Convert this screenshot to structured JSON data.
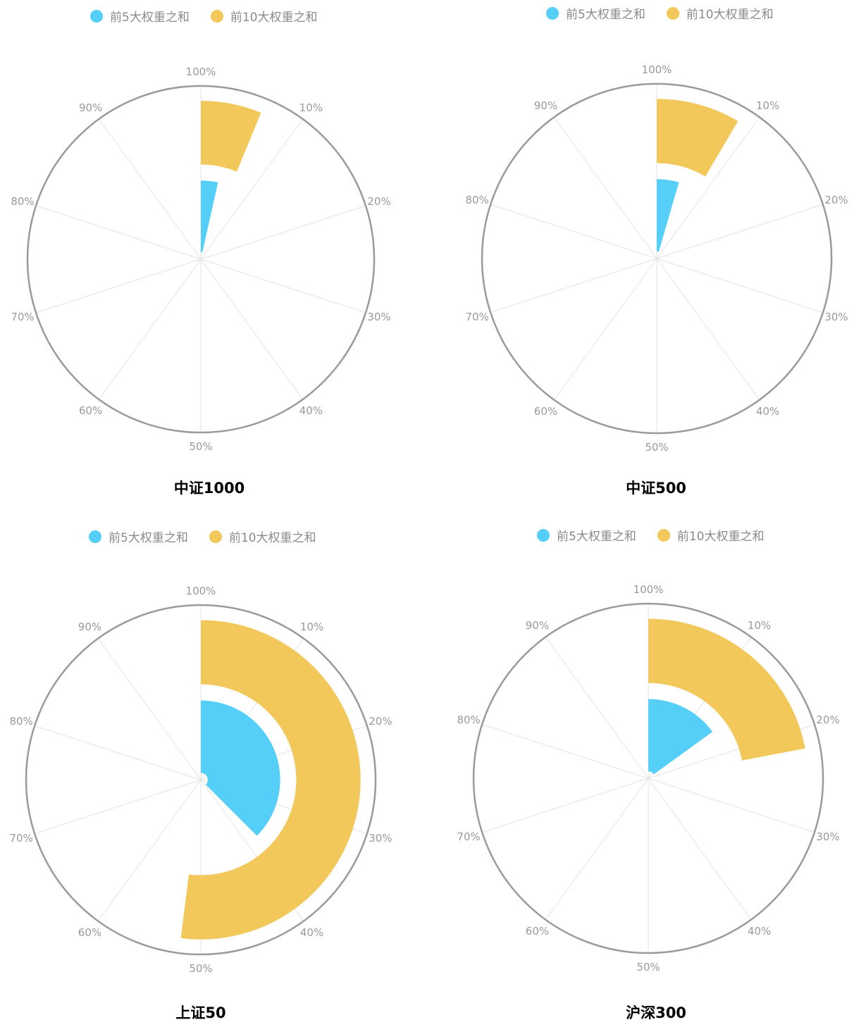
{
  "colors": {
    "top5": "#55cff8",
    "top10": "#f2c85b",
    "outer_ring": "#9a9a9a",
    "spoke": "#e3e3e3",
    "tick_label": "#999999"
  },
  "chart_data": [
    {
      "type": "polar-bar",
      "title": "中证1000",
      "angle_axis": {
        "min": 0,
        "max": 100,
        "unit": "%",
        "tick_labels": [
          "100%",
          "10%",
          "20%",
          "30%",
          "40%",
          "50%",
          "60%",
          "70%",
          "80%",
          "90%"
        ]
      },
      "categories": [
        "前5大权重之和",
        "前10大权重之和"
      ],
      "series": [
        {
          "name": "前5大权重之和",
          "color": "#55cff8",
          "values": [
            3.5,
            null
          ]
        },
        {
          "name": "前10大权重之和",
          "color": "#f2c85b",
          "values": [
            null,
            6.2
          ]
        }
      ],
      "legend": "top-center"
    },
    {
      "type": "polar-bar",
      "title": "中证500",
      "angle_axis": {
        "min": 0,
        "max": 100,
        "unit": "%",
        "tick_labels": [
          "100%",
          "10%",
          "20%",
          "30%",
          "40%",
          "50%",
          "60%",
          "70%",
          "80%",
          "90%"
        ]
      },
      "categories": [
        "前5大权重之和",
        "前10大权重之和"
      ],
      "series": [
        {
          "name": "前5大权重之和",
          "color": "#55cff8",
          "values": [
            4.5,
            null
          ]
        },
        {
          "name": "前10大权重之和",
          "color": "#f2c85b",
          "values": [
            null,
            8.5
          ]
        }
      ],
      "legend": "top-center"
    },
    {
      "type": "polar-bar",
      "title": "上证50",
      "angle_axis": {
        "min": 0,
        "max": 100,
        "unit": "%",
        "tick_labels": [
          "100%",
          "10%",
          "20%",
          "30%",
          "40%",
          "50%",
          "60%",
          "70%",
          "80%",
          "90%"
        ]
      },
      "categories": [
        "前5大权重之和",
        "前10大权重之和"
      ],
      "series": [
        {
          "name": "前5大权重之和",
          "color": "#55cff8",
          "values": [
            37.5,
            null
          ]
        },
        {
          "name": "前10大权重之和",
          "color": "#f2c85b",
          "values": [
            null,
            52
          ]
        }
      ],
      "legend": "top-center"
    },
    {
      "type": "polar-bar",
      "title": "沪深300",
      "angle_axis": {
        "min": 0,
        "max": 100,
        "unit": "%",
        "tick_labels": [
          "100%",
          "10%",
          "20%",
          "30%",
          "40%",
          "50%",
          "60%",
          "70%",
          "80%",
          "90%"
        ]
      },
      "categories": [
        "前5大权重之和",
        "前10大权重之和"
      ],
      "series": [
        {
          "name": "前5大权重之和",
          "color": "#55cff8",
          "values": [
            15,
            null
          ]
        },
        {
          "name": "前10大权重之和",
          "color": "#f2c85b",
          "values": [
            null,
            22
          ]
        }
      ],
      "legend": "top-center"
    }
  ]
}
